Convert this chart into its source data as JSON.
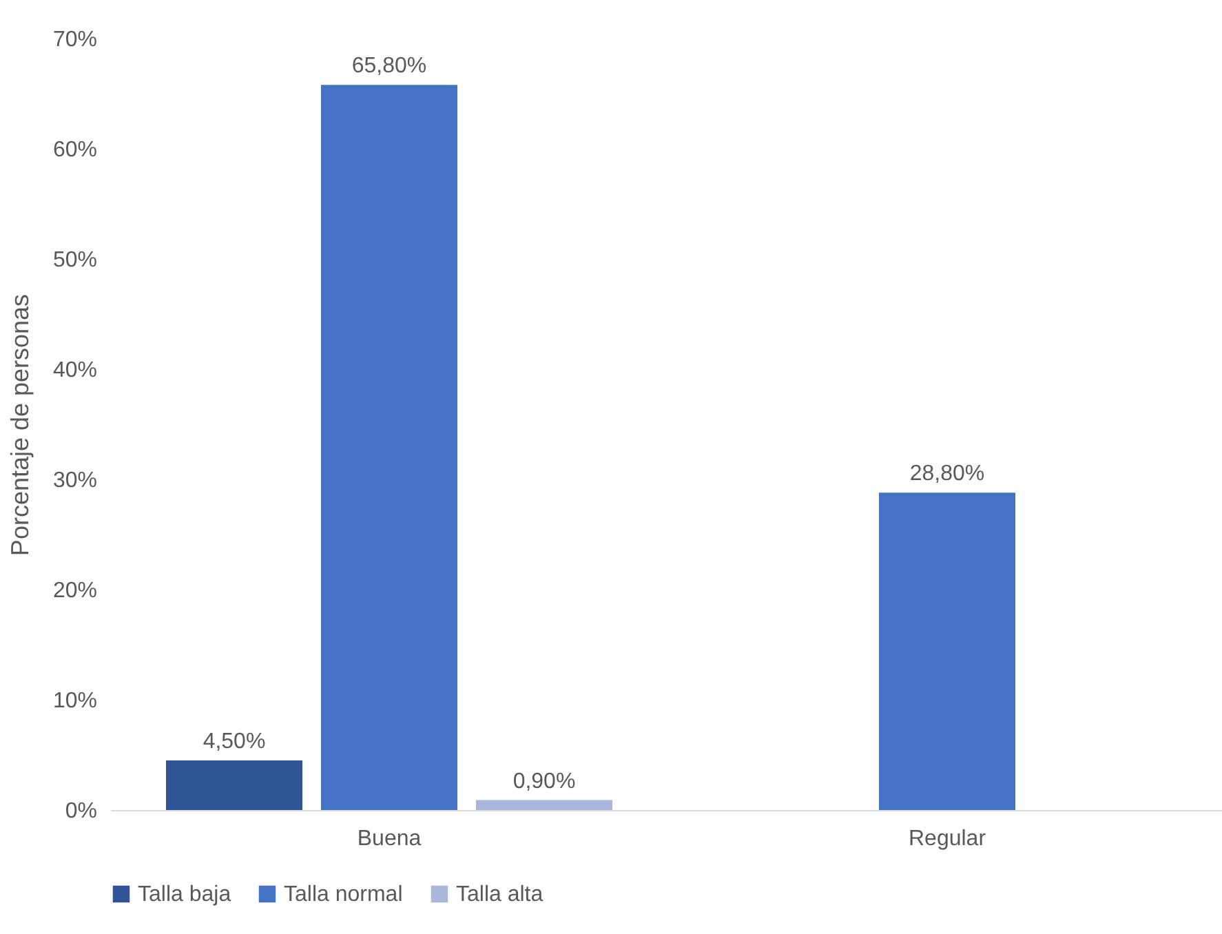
{
  "chart_data": {
    "type": "bar",
    "ylabel": "Porcentaje de personas",
    "categories": [
      "Buena",
      "Regular"
    ],
    "series": [
      {
        "name": "Talla baja",
        "color": "#2f5597",
        "values": [
          4.5,
          null
        ],
        "value_labels": [
          "4,50%",
          null
        ]
      },
      {
        "name": "Talla normal",
        "color": "#4472c4",
        "values": [
          65.8,
          28.8
        ],
        "value_labels": [
          "65,80%",
          "28,80%"
        ]
      },
      {
        "name": "Talla alta",
        "color": "#a9b7dd",
        "values": [
          0.9,
          null
        ],
        "value_labels": [
          "0,90%",
          null
        ]
      }
    ],
    "ylim": [
      0,
      70
    ],
    "yticks": [
      {
        "value": 0,
        "label": "0%"
      },
      {
        "value": 10,
        "label": "10%"
      },
      {
        "value": 20,
        "label": "20%"
      },
      {
        "value": 30,
        "label": "30%"
      },
      {
        "value": 40,
        "label": "40%"
      },
      {
        "value": 50,
        "label": "50%"
      },
      {
        "value": 60,
        "label": "60%"
      },
      {
        "value": 70,
        "label": "70%"
      }
    ],
    "grid": false,
    "legend": "bottom"
  }
}
